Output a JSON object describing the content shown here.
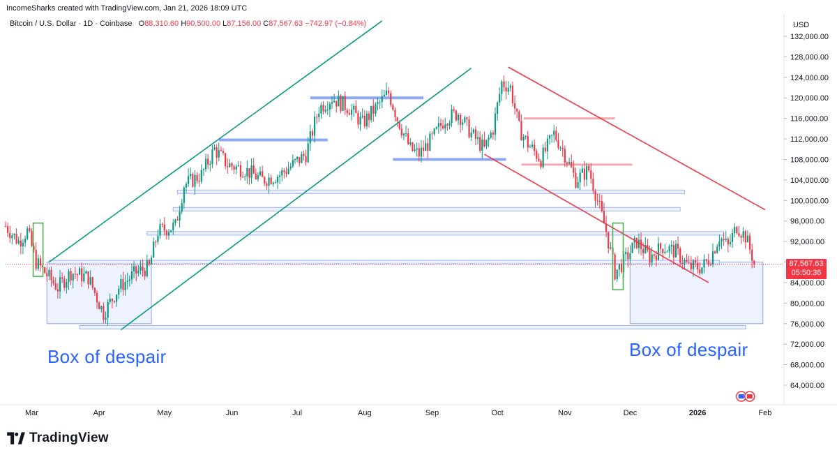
{
  "attribution": "IncomeSharks created with TradingView.com, Jan 21, 2026 18:09 UTC",
  "legend": {
    "symbol": "Bitcoin / U.S. Dollar · 1D · Coinbase",
    "open_label": "O",
    "open": "88,310.60",
    "high_label": "H",
    "high": "90,500.00",
    "low_label": "L",
    "low": "87,156.00",
    "close_label": "C",
    "close": "87,567.63",
    "change": "−742.97 (−0.84%)"
  },
  "currency": "USD",
  "price_tag": {
    "price": "87,567.63",
    "countdown": "05:50:36"
  },
  "annotations": {
    "left": "Box of despair",
    "right": "Box of despair"
  },
  "footer": {
    "brand": "TradingView"
  },
  "colors": {
    "up": "#089981",
    "down": "#f23645",
    "channel": "#089981",
    "downtrend": "#f23645",
    "levels": "#2962ff",
    "box_fill": "#e8edfd",
    "green_box": "#4caf50"
  },
  "chart_data": {
    "type": "candlestick",
    "y_axis_ticks": [
      "132,000.00",
      "128,000.00",
      "124,000.00",
      "120,000.00",
      "116,000.00",
      "112,000.00",
      "108,000.00",
      "104,000.00",
      "100,000.00",
      "96,000.00",
      "92,000.00",
      "88,000.00",
      "84,000.00",
      "80,000.00",
      "76,000.00",
      "72,000.00",
      "68,000.00",
      "64,000.00"
    ],
    "x_axis_ticks": [
      "Mar",
      "Apr",
      "May",
      "Jun",
      "Jul",
      "Aug",
      "Sep",
      "Oct",
      "Nov",
      "Dec",
      "2026",
      "Feb"
    ],
    "ylim": [
      61000,
      135000
    ],
    "waypoints": [
      [
        0,
        95000
      ],
      [
        6,
        92000
      ],
      [
        10,
        94000
      ],
      [
        14,
        88000
      ],
      [
        18,
        86000
      ],
      [
        24,
        83000
      ],
      [
        30,
        86000
      ],
      [
        38,
        85000
      ],
      [
        45,
        78000
      ],
      [
        52,
        83000
      ],
      [
        60,
        86000
      ],
      [
        66,
        87000
      ],
      [
        70,
        94000
      ],
      [
        78,
        95000
      ],
      [
        82,
        103000
      ],
      [
        90,
        105000
      ],
      [
        96,
        110000
      ],
      [
        102,
        107000
      ],
      [
        110,
        106000
      ],
      [
        118,
        104000
      ],
      [
        126,
        105000
      ],
      [
        132,
        107000
      ],
      [
        138,
        109000
      ],
      [
        144,
        118000
      ],
      [
        150,
        120000
      ],
      [
        158,
        118000
      ],
      [
        164,
        115000
      ],
      [
        170,
        118000
      ],
      [
        176,
        121000
      ],
      [
        180,
        116000
      ],
      [
        186,
        110000
      ],
      [
        190,
        109000
      ],
      [
        196,
        112000
      ],
      [
        202,
        116000
      ],
      [
        208,
        117000
      ],
      [
        214,
        113000
      ],
      [
        220,
        110000
      ],
      [
        224,
        114000
      ],
      [
        228,
        123000
      ],
      [
        232,
        122000
      ],
      [
        236,
        114000
      ],
      [
        240,
        111000
      ],
      [
        246,
        108000
      ],
      [
        252,
        113000
      ],
      [
        256,
        110000
      ],
      [
        262,
        104000
      ],
      [
        268,
        106000
      ],
      [
        272,
        100000
      ],
      [
        276,
        94000
      ],
      [
        280,
        86000
      ],
      [
        284,
        88000
      ],
      [
        290,
        92000
      ],
      [
        296,
        89000
      ],
      [
        302,
        91000
      ],
      [
        308,
        90000
      ],
      [
        314,
        87000
      ],
      [
        320,
        87000
      ],
      [
        324,
        89000
      ],
      [
        328,
        93000
      ],
      [
        332,
        91000
      ],
      [
        336,
        95000
      ],
      [
        340,
        93000
      ],
      [
        344,
        88000
      ]
    ],
    "horizontal_levels": [
      {
        "price": 111800,
        "from": "May",
        "to": "Jul"
      },
      {
        "price": 120000,
        "from": "Jul",
        "to": "Aug"
      },
      {
        "price": 108000,
        "from": "Aug",
        "to": "Sep"
      },
      {
        "price": 101700,
        "from": "May",
        "to": "Jan"
      },
      {
        "price": 98300,
        "from": "May",
        "to": "Jan"
      },
      {
        "price": 93600,
        "from": "Apr",
        "to": "Jan"
      },
      {
        "price": 88000,
        "from": "Mar",
        "to": "Jan"
      },
      {
        "price": 75300,
        "from": "Mar",
        "to": "Jan"
      },
      {
        "price": 116000,
        "from": "Oct",
        "to": "Nov"
      },
      {
        "price": 107000,
        "from": "Oct",
        "to": "Nov"
      }
    ],
    "boxes": [
      {
        "label": "Box of despair",
        "top": 88000,
        "bottom": 76000,
        "side": "left"
      },
      {
        "label": "Box of despair",
        "top": 88000,
        "bottom": 76000,
        "side": "right"
      }
    ]
  }
}
